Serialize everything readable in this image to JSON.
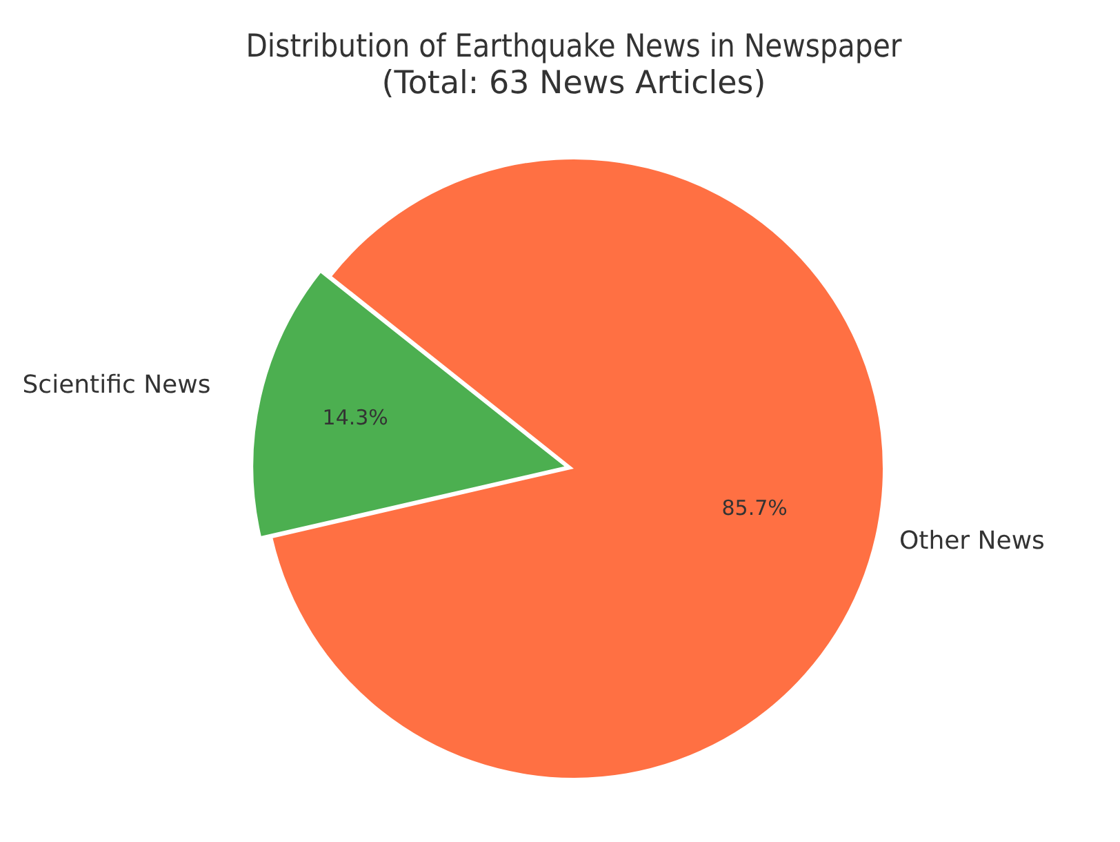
{
  "chart_data": {
    "type": "pie",
    "title": [
      "Distribution of Earthquake News in Newspaper",
      "(Total: 63 News Articles)"
    ],
    "categories": [
      "Scientific News",
      "Other News"
    ],
    "values": [
      14.3,
      85.7
    ],
    "colors": [
      "#4caf50",
      "#ff7043"
    ],
    "value_labels": [
      "14.3%",
      "85.7%"
    ],
    "legend": false
  }
}
